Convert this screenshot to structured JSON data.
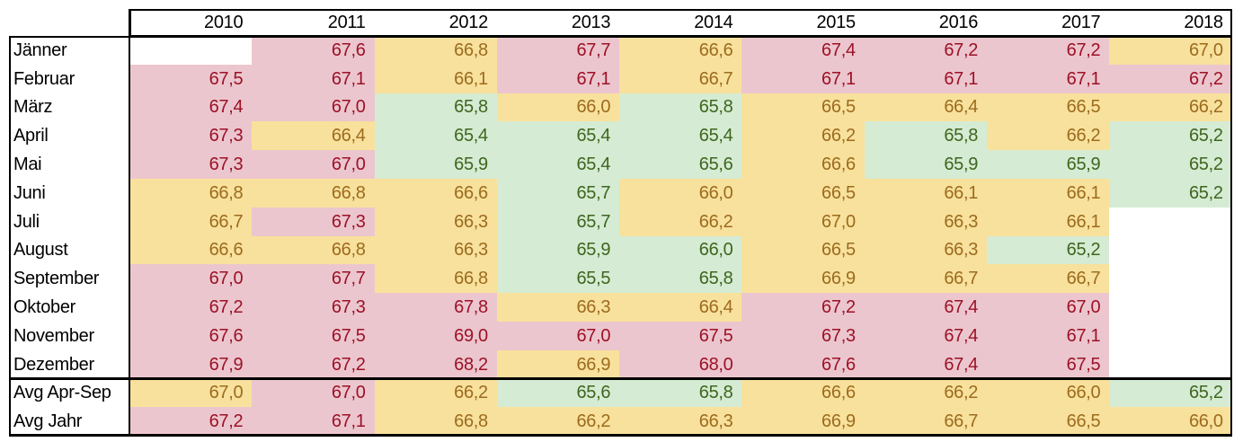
{
  "table": {
    "corner_label": "",
    "years": [
      "2010",
      "2011",
      "2012",
      "2013",
      "2014",
      "2015",
      "2016",
      "2017",
      "2018"
    ],
    "cells_schema": [
      "value",
      "color"
    ],
    "rows": [
      {
        "label": "Jänner",
        "cells": [
          [
            "",
            "blank"
          ],
          [
            "67,6",
            "red"
          ],
          [
            "66,8",
            "yellow"
          ],
          [
            "67,7",
            "red"
          ],
          [
            "66,6",
            "yellow"
          ],
          [
            "67,4",
            "red"
          ],
          [
            "67,2",
            "red"
          ],
          [
            "67,2",
            "red"
          ],
          [
            "67,0",
            "yellow"
          ]
        ]
      },
      {
        "label": "Februar",
        "cells": [
          [
            "67,5",
            "red"
          ],
          [
            "67,1",
            "red"
          ],
          [
            "66,1",
            "yellow"
          ],
          [
            "67,1",
            "red"
          ],
          [
            "66,7",
            "yellow"
          ],
          [
            "67,1",
            "red"
          ],
          [
            "67,1",
            "red"
          ],
          [
            "67,1",
            "red"
          ],
          [
            "67,2",
            "red"
          ]
        ]
      },
      {
        "label": "März",
        "cells": [
          [
            "67,4",
            "red"
          ],
          [
            "67,0",
            "red"
          ],
          [
            "65,8",
            "green"
          ],
          [
            "66,0",
            "yellow"
          ],
          [
            "65,8",
            "green"
          ],
          [
            "66,5",
            "yellow"
          ],
          [
            "66,4",
            "yellow"
          ],
          [
            "66,5",
            "yellow"
          ],
          [
            "66,2",
            "yellow"
          ]
        ]
      },
      {
        "label": "April",
        "cells": [
          [
            "67,3",
            "red"
          ],
          [
            "66,4",
            "yellow"
          ],
          [
            "65,4",
            "green"
          ],
          [
            "65,4",
            "green"
          ],
          [
            "65,4",
            "green"
          ],
          [
            "66,2",
            "yellow"
          ],
          [
            "65,8",
            "green"
          ],
          [
            "66,2",
            "yellow"
          ],
          [
            "65,2",
            "green"
          ]
        ]
      },
      {
        "label": "Mai",
        "cells": [
          [
            "67,3",
            "red"
          ],
          [
            "67,0",
            "red"
          ],
          [
            "65,9",
            "green"
          ],
          [
            "65,4",
            "green"
          ],
          [
            "65,6",
            "green"
          ],
          [
            "66,6",
            "yellow"
          ],
          [
            "65,9",
            "green"
          ],
          [
            "65,9",
            "green"
          ],
          [
            "65,2",
            "green"
          ]
        ]
      },
      {
        "label": "Juni",
        "cells": [
          [
            "66,8",
            "yellow"
          ],
          [
            "66,8",
            "yellow"
          ],
          [
            "66,6",
            "yellow"
          ],
          [
            "65,7",
            "green"
          ],
          [
            "66,0",
            "yellow"
          ],
          [
            "66,5",
            "yellow"
          ],
          [
            "66,1",
            "yellow"
          ],
          [
            "66,1",
            "yellow"
          ],
          [
            "65,2",
            "green"
          ]
        ]
      },
      {
        "label": "Juli",
        "cells": [
          [
            "66,7",
            "yellow"
          ],
          [
            "67,3",
            "red"
          ],
          [
            "66,3",
            "yellow"
          ],
          [
            "65,7",
            "green"
          ],
          [
            "66,2",
            "yellow"
          ],
          [
            "67,0",
            "yellow"
          ],
          [
            "66,3",
            "yellow"
          ],
          [
            "66,1",
            "yellow"
          ],
          [
            "",
            "blank"
          ]
        ]
      },
      {
        "label": "August",
        "cells": [
          [
            "66,6",
            "yellow"
          ],
          [
            "66,8",
            "yellow"
          ],
          [
            "66,3",
            "yellow"
          ],
          [
            "65,9",
            "green"
          ],
          [
            "66,0",
            "green"
          ],
          [
            "66,5",
            "yellow"
          ],
          [
            "66,3",
            "yellow"
          ],
          [
            "65,2",
            "green"
          ],
          [
            "",
            "blank"
          ]
        ]
      },
      {
        "label": "September",
        "cells": [
          [
            "67,0",
            "red"
          ],
          [
            "67,7",
            "red"
          ],
          [
            "66,8",
            "yellow"
          ],
          [
            "65,5",
            "green"
          ],
          [
            "65,8",
            "green"
          ],
          [
            "66,9",
            "yellow"
          ],
          [
            "66,7",
            "yellow"
          ],
          [
            "66,7",
            "yellow"
          ],
          [
            "",
            "blank"
          ]
        ]
      },
      {
        "label": "Oktober",
        "cells": [
          [
            "67,2",
            "red"
          ],
          [
            "67,3",
            "red"
          ],
          [
            "67,8",
            "red"
          ],
          [
            "66,3",
            "yellow"
          ],
          [
            "66,4",
            "yellow"
          ],
          [
            "67,2",
            "red"
          ],
          [
            "67,4",
            "red"
          ],
          [
            "67,0",
            "red"
          ],
          [
            "",
            "blank"
          ]
        ]
      },
      {
        "label": "November",
        "cells": [
          [
            "67,6",
            "red"
          ],
          [
            "67,5",
            "red"
          ],
          [
            "69,0",
            "red"
          ],
          [
            "67,0",
            "red"
          ],
          [
            "67,5",
            "red"
          ],
          [
            "67,3",
            "red"
          ],
          [
            "67,4",
            "red"
          ],
          [
            "67,1",
            "red"
          ],
          [
            "",
            "blank"
          ]
        ]
      },
      {
        "label": "Dezember",
        "cells": [
          [
            "67,9",
            "red"
          ],
          [
            "67,2",
            "red"
          ],
          [
            "68,2",
            "red"
          ],
          [
            "66,9",
            "yellow"
          ],
          [
            "68,0",
            "red"
          ],
          [
            "67,6",
            "red"
          ],
          [
            "67,4",
            "red"
          ],
          [
            "67,5",
            "red"
          ],
          [
            "",
            "blank"
          ]
        ]
      },
      {
        "label": "Avg Apr-Sep",
        "cells": [
          [
            "67,0",
            "yellow"
          ],
          [
            "67,0",
            "red"
          ],
          [
            "66,2",
            "yellow"
          ],
          [
            "65,6",
            "green"
          ],
          [
            "65,8",
            "green"
          ],
          [
            "66,6",
            "yellow"
          ],
          [
            "66,2",
            "yellow"
          ],
          [
            "66,0",
            "yellow"
          ],
          [
            "65,2",
            "green"
          ]
        ]
      },
      {
        "label": "Avg Jahr",
        "cells": [
          [
            "67,2",
            "red"
          ],
          [
            "67,1",
            "red"
          ],
          [
            "66,8",
            "yellow"
          ],
          [
            "66,2",
            "yellow"
          ],
          [
            "66,3",
            "yellow"
          ],
          [
            "66,9",
            "yellow"
          ],
          [
            "66,7",
            "yellow"
          ],
          [
            "66,5",
            "yellow"
          ],
          [
            "66,0",
            "yellow"
          ]
        ]
      }
    ],
    "summary_rows_start_label": "Avg Apr-Sep"
  },
  "colors": {
    "red_bg": "#ecc6ce",
    "red_text": "#9c1127",
    "yellow_bg": "#f8e19c",
    "yellow_text": "#9c6b1e",
    "green_bg": "#d5ebd3",
    "green_text": "#3e661e",
    "border": "#000000"
  }
}
